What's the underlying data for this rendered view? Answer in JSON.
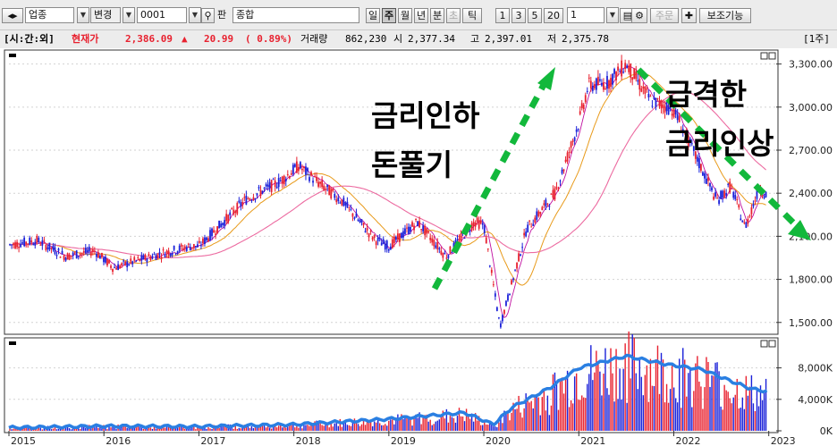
{
  "toolbar": {
    "market": "업종",
    "change_label": "변경",
    "code": "0001",
    "pan_label": "판",
    "name": "종합",
    "periods": [
      "일",
      "주",
      "월",
      "년",
      "분",
      "초",
      "틱"
    ],
    "active_period": "주",
    "numbers": [
      "1",
      "3",
      "5",
      "20"
    ],
    "count_value": "1",
    "order_label": "주문",
    "aux_label": "보조기능"
  },
  "infobar": {
    "tag": "[시:간:외]",
    "current_label": "현재가",
    "current_value": "2,386.09",
    "arrow": "▲",
    "change": "20.99",
    "pct": "( 0.89%)",
    "volume_label": "거래량",
    "volume": "862,230",
    "open_label": "시",
    "open": "2,377.34",
    "high_label": "고",
    "high": "2,397.01",
    "low_label": "저",
    "low": "2,375.78",
    "period_tag": "[1주]"
  },
  "annotations": {
    "left_line1": "금리인하",
    "left_line2": "돈풀기",
    "right_line1": "급격한",
    "right_line2": "금리인상"
  },
  "colors": {
    "up": "#e8212f",
    "down": "#1b21d9",
    "ma5": "#c010a0",
    "ma20": "#e89a1a",
    "ma60": "#e23a6c",
    "ma120": "#ec6aa0",
    "volume_line": "#2a7fe2",
    "arrow": "#12b83b"
  },
  "chart_data": [
    {
      "type": "candlestick",
      "title": "",
      "x_labels": [
        "2015",
        "2016",
        "2017",
        "2018",
        "2019",
        "2020",
        "2021",
        "2022",
        "2023"
      ],
      "y_ticks": [
        "3,300.00",
        "3,000.00",
        "2,700.00",
        "2,400.00",
        "2,100.00",
        "1,800.00",
        "1,500.00"
      ],
      "ylim": [
        1430,
        3360
      ],
      "grid": true,
      "series": [
        {
          "x": 2015.0,
          "y": 2040
        },
        {
          "x": 2015.3,
          "y": 2070
        },
        {
          "x": 2015.6,
          "y": 1960
        },
        {
          "x": 2015.9,
          "y": 2000
        },
        {
          "x": 2016.1,
          "y": 1880
        },
        {
          "x": 2016.6,
          "y": 1980
        },
        {
          "x": 2016.9,
          "y": 2030
        },
        {
          "x": 2017.0,
          "y": 2030
        },
        {
          "x": 2017.5,
          "y": 2360
        },
        {
          "x": 2017.85,
          "y": 2480
        },
        {
          "x": 2018.05,
          "y": 2590
        },
        {
          "x": 2018.3,
          "y": 2450
        },
        {
          "x": 2018.5,
          "y": 2350
        },
        {
          "x": 2018.85,
          "y": 2080
        },
        {
          "x": 2019.0,
          "y": 2030
        },
        {
          "x": 2019.3,
          "y": 2200
        },
        {
          "x": 2019.6,
          "y": 1960
        },
        {
          "x": 2019.9,
          "y": 2200
        },
        {
          "x": 2020.0,
          "y": 2180
        },
        {
          "x": 2020.17,
          "y": 1470
        },
        {
          "x": 2020.45,
          "y": 2150
        },
        {
          "x": 2020.75,
          "y": 2400
        },
        {
          "x": 2020.99,
          "y": 2870
        },
        {
          "x": 2021.1,
          "y": 3150
        },
        {
          "x": 2021.3,
          "y": 3170
        },
        {
          "x": 2021.5,
          "y": 3300
        },
        {
          "x": 2021.75,
          "y": 3050
        },
        {
          "x": 2022.0,
          "y": 2980
        },
        {
          "x": 2022.2,
          "y": 2700
        },
        {
          "x": 2022.45,
          "y": 2350
        },
        {
          "x": 2022.6,
          "y": 2450
        },
        {
          "x": 2022.75,
          "y": 2160
        },
        {
          "x": 2022.9,
          "y": 2440
        },
        {
          "x": 2022.98,
          "y": 2386
        }
      ]
    },
    {
      "type": "bar",
      "title": "",
      "y_ticks": [
        "8,000K",
        "4,000K",
        "0K"
      ],
      "ylim": [
        0,
        10000
      ],
      "unit": "K",
      "volume_trend": [
        {
          "x": 2015.0,
          "y": 400
        },
        {
          "x": 2016.0,
          "y": 600
        },
        {
          "x": 2017.0,
          "y": 550
        },
        {
          "x": 2018.0,
          "y": 800
        },
        {
          "x": 2019.0,
          "y": 1500
        },
        {
          "x": 2019.8,
          "y": 2300
        },
        {
          "x": 2020.1,
          "y": 800
        },
        {
          "x": 2020.3,
          "y": 3000
        },
        {
          "x": 2020.7,
          "y": 5500
        },
        {
          "x": 2021.0,
          "y": 8000
        },
        {
          "x": 2021.5,
          "y": 9500
        },
        {
          "x": 2021.9,
          "y": 8500
        },
        {
          "x": 2022.3,
          "y": 7800
        },
        {
          "x": 2022.5,
          "y": 6800
        },
        {
          "x": 2022.8,
          "y": 5400
        },
        {
          "x": 2022.98,
          "y": 5000
        }
      ]
    }
  ]
}
